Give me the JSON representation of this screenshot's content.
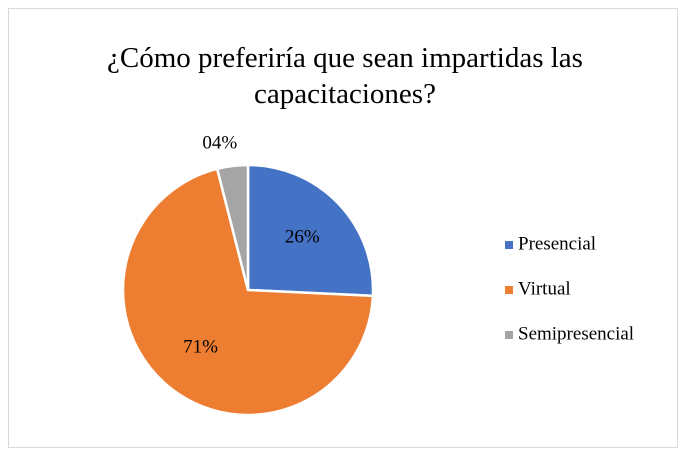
{
  "chart_data": {
    "type": "pie",
    "title": "¿Cómo preferiría que sean impartidas las capacitaciones?",
    "categories": [
      "Presencial",
      "Virtual",
      "Semipresencial"
    ],
    "values": [
      26,
      71,
      4
    ],
    "value_labels": [
      "26%",
      "71%",
      "04%"
    ],
    "colors": [
      "#4472c4",
      "#ed7d31",
      "#a5a5a5"
    ],
    "legend": "right"
  }
}
